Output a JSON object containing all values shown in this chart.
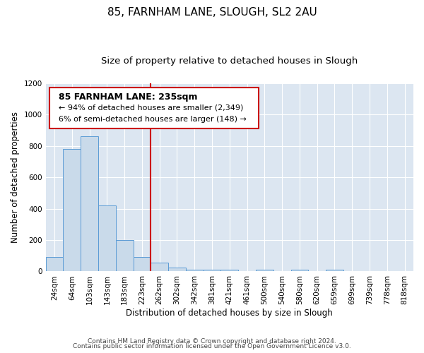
{
  "title": "85, FARNHAM LANE, SLOUGH, SL2 2AU",
  "subtitle": "Size of property relative to detached houses in Slough",
  "xlabel": "Distribution of detached houses by size in Slough",
  "ylabel": "Number of detached properties",
  "bar_labels": [
    "24sqm",
    "64sqm",
    "103sqm",
    "143sqm",
    "183sqm",
    "223sqm",
    "262sqm",
    "302sqm",
    "342sqm",
    "381sqm",
    "421sqm",
    "461sqm",
    "500sqm",
    "540sqm",
    "580sqm",
    "620sqm",
    "659sqm",
    "699sqm",
    "739sqm",
    "778sqm",
    "818sqm"
  ],
  "bar_heights": [
    90,
    780,
    860,
    420,
    200,
    90,
    55,
    25,
    10,
    10,
    10,
    0,
    10,
    0,
    10,
    0,
    10,
    0,
    0,
    0,
    0
  ],
  "bar_color": "#c9daea",
  "bar_edge_color": "#5b9bd5",
  "bar_width": 1.0,
  "vline_x": 5.5,
  "vline_color": "#cc0000",
  "annotation_line1": "85 FARNHAM LANE: 235sqm",
  "annotation_line2": "← 94% of detached houses are smaller (2,349)",
  "annotation_line3": "6% of semi-detached houses are larger (148) →",
  "ylim": [
    0,
    1200
  ],
  "yticks": [
    0,
    200,
    400,
    600,
    800,
    1000,
    1200
  ],
  "figure_bg_color": "#ffffff",
  "plot_bg_color": "#dce6f1",
  "footer_line1": "Contains HM Land Registry data © Crown copyright and database right 2024.",
  "footer_line2": "Contains public sector information licensed under the Open Government Licence v3.0.",
  "title_fontsize": 11,
  "subtitle_fontsize": 9.5,
  "axis_label_fontsize": 8.5,
  "tick_fontsize": 7.5,
  "annotation_fontsize_title": 9,
  "annotation_fontsize_body": 8,
  "footer_fontsize": 6.5
}
